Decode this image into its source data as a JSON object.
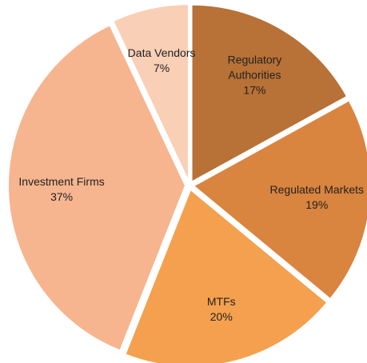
{
  "chart_data": {
    "type": "pie",
    "categories": [
      "Regulatory Authorities",
      "Regulated Markets",
      "MTFs",
      "Investment Firms",
      "Data Vendors"
    ],
    "values": [
      17,
      19,
      20,
      37,
      7
    ],
    "value_labels": [
      "17%",
      "19%",
      "20%",
      "37%",
      "7%"
    ],
    "colors": [
      "#b87136",
      "#d9843f",
      "#f5a04e",
      "#f6b58f",
      "#f9cfb6"
    ]
  }
}
